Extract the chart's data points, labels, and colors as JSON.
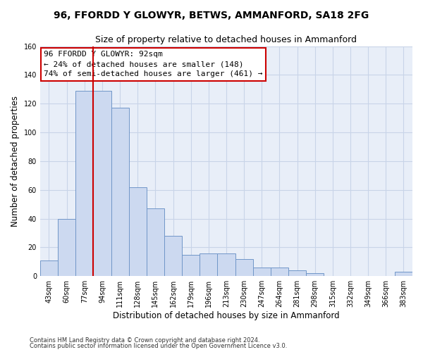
{
  "title": "96, FFORDD Y GLOWYR, BETWS, AMMANFORD, SA18 2FG",
  "subtitle": "Size of property relative to detached houses in Ammanford",
  "xlabel": "Distribution of detached houses by size in Ammanford",
  "ylabel": "Number of detached properties",
  "bar_color": "#ccd9f0",
  "bar_edge_color": "#7096c8",
  "categories": [
    "43sqm",
    "60sqm",
    "77sqm",
    "94sqm",
    "111sqm",
    "128sqm",
    "145sqm",
    "162sqm",
    "179sqm",
    "196sqm",
    "213sqm",
    "230sqm",
    "247sqm",
    "264sqm",
    "281sqm",
    "298sqm",
    "315sqm",
    "332sqm",
    "349sqm",
    "366sqm",
    "383sqm"
  ],
  "values": [
    11,
    40,
    129,
    129,
    117,
    62,
    47,
    28,
    15,
    16,
    16,
    12,
    6,
    6,
    4,
    2,
    0,
    0,
    0,
    0,
    3
  ],
  "vline_color": "#cc0000",
  "annotation_text": "96 FFORDD Y GLOWYR: 92sqm\n← 24% of detached houses are smaller (148)\n74% of semi-detached houses are larger (461) →",
  "annotation_box_color": "white",
  "annotation_box_edge_color": "#cc0000",
  "ylim": [
    0,
    160
  ],
  "yticks": [
    0,
    20,
    40,
    60,
    80,
    100,
    120,
    140,
    160
  ],
  "grid_color": "#c8d4e8",
  "background_color": "#e8eef8",
  "footer1": "Contains HM Land Registry data © Crown copyright and database right 2024.",
  "footer2": "Contains public sector information licensed under the Open Government Licence v3.0.",
  "title_fontsize": 10,
  "subtitle_fontsize": 9,
  "tick_fontsize": 7,
  "ylabel_fontsize": 8.5,
  "xlabel_fontsize": 8.5,
  "annotation_fontsize": 8,
  "footer_fontsize": 6
}
